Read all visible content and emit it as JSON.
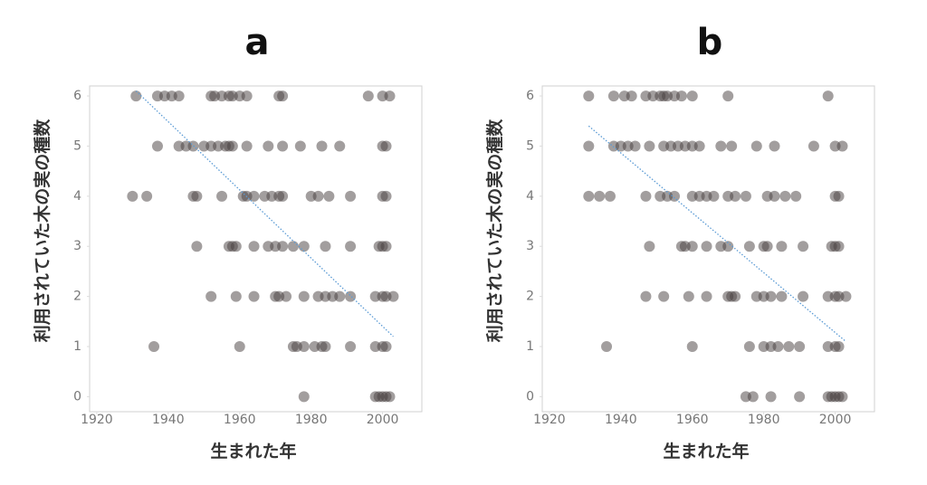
{
  "chart_data": [
    {
      "type": "scatter",
      "title": "a",
      "xlabel": "生まれた年",
      "ylabel": "利用されていた木の実の種数",
      "color": "rgba(70,62,62,0.5)",
      "trend_color": "#5b9bd5",
      "xlim": [
        1918,
        2011
      ],
      "ylim": [
        -0.3,
        6.2
      ],
      "xticks": [
        1920,
        1940,
        1960,
        1980,
        2000
      ],
      "yticks": [
        0,
        1,
        2,
        3,
        4,
        5,
        6
      ],
      "x": [
        1931,
        1937,
        1939,
        1941,
        1943,
        1952,
        1953,
        1955,
        1957,
        1958,
        1960,
        1962,
        1971,
        1972,
        1996,
        2000,
        2002,
        1937,
        1943,
        1945,
        1947,
        1950,
        1952,
        1954,
        1956,
        1957,
        1958,
        1962,
        1968,
        1972,
        1977,
        1983,
        1988,
        2000,
        2001,
        1930,
        1934,
        1947,
        1948,
        1955,
        1961,
        1962,
        1964,
        1967,
        1969,
        1971,
        1972,
        1980,
        1982,
        1985,
        1991,
        2000,
        2001,
        1948,
        1957,
        1958,
        1959,
        1964,
        1968,
        1970,
        1972,
        1975,
        1978,
        1984,
        1991,
        1999,
        2000,
        2001,
        1952,
        1959,
        1964,
        1970,
        1971,
        1973,
        1978,
        1982,
        1984,
        1986,
        1988,
        1991,
        1998,
        2000,
        2001,
        2003,
        1936,
        1960,
        1975,
        1976,
        1978,
        1981,
        1983,
        1984,
        1991,
        1998,
        2000,
        2001,
        1978,
        1998,
        1999,
        2000,
        2001,
        2002
      ],
      "y": [
        6,
        6,
        6,
        6,
        6,
        6,
        6,
        6,
        6,
        6,
        6,
        6,
        6,
        6,
        6,
        6,
        6,
        5,
        5,
        5,
        5,
        5,
        5,
        5,
        5,
        5,
        5,
        5,
        5,
        5,
        5,
        5,
        5,
        5,
        5,
        4,
        4,
        4,
        4,
        4,
        4,
        4,
        4,
        4,
        4,
        4,
        4,
        4,
        4,
        4,
        4,
        4,
        4,
        3,
        3,
        3,
        3,
        3,
        3,
        3,
        3,
        3,
        3,
        3,
        3,
        3,
        3,
        3,
        2,
        2,
        2,
        2,
        2,
        2,
        2,
        2,
        2,
        2,
        2,
        2,
        2,
        2,
        2,
        2,
        1,
        1,
        1,
        1,
        1,
        1,
        1,
        1,
        1,
        1,
        1,
        1,
        0,
        0,
        0,
        0,
        0,
        0
      ],
      "trendline": {
        "x": [
          1931,
          2003
        ],
        "y": [
          6.1,
          1.2
        ]
      }
    },
    {
      "type": "scatter",
      "title": "b",
      "xlabel": "生まれた年",
      "ylabel": "利用されていた木の実の種数",
      "color": "rgba(70,62,62,0.5)",
      "trend_color": "#5b9bd5",
      "xlim": [
        1918,
        2011
      ],
      "ylim": [
        -0.3,
        6.2
      ],
      "xticks": [
        1920,
        1940,
        1960,
        1980,
        2000
      ],
      "yticks": [
        0,
        1,
        2,
        3,
        4,
        5,
        6
      ],
      "x": [
        1931,
        1938,
        1941,
        1943,
        1947,
        1949,
        1951,
        1952,
        1953,
        1955,
        1957,
        1960,
        1970,
        1998,
        1931,
        1938,
        1940,
        1942,
        1944,
        1948,
        1952,
        1954,
        1956,
        1958,
        1960,
        1962,
        1968,
        1971,
        1978,
        1983,
        1994,
        2000,
        2002,
        1931,
        1934,
        1937,
        1947,
        1951,
        1953,
        1955,
        1960,
        1962,
        1964,
        1966,
        1970,
        1972,
        1975,
        1981,
        1983,
        1986,
        1989,
        2000,
        2001,
        1948,
        1957,
        1958,
        1960,
        1964,
        1968,
        1970,
        1976,
        1980,
        1981,
        1985,
        1991,
        1999,
        2000,
        2001,
        1947,
        1952,
        1959,
        1964,
        1970,
        1971,
        1972,
        1978,
        1980,
        1982,
        1985,
        1991,
        1998,
        2000,
        2001,
        2003,
        1936,
        1960,
        1976,
        1980,
        1982,
        1984,
        1987,
        1990,
        1998,
        2000,
        2001,
        1975,
        1977,
        1982,
        1990,
        1998,
        1999,
        2000,
        2001,
        2002
      ],
      "y": [
        6,
        6,
        6,
        6,
        6,
        6,
        6,
        6,
        6,
        6,
        6,
        6,
        6,
        6,
        5,
        5,
        5,
        5,
        5,
        5,
        5,
        5,
        5,
        5,
        5,
        5,
        5,
        5,
        5,
        5,
        5,
        5,
        5,
        4,
        4,
        4,
        4,
        4,
        4,
        4,
        4,
        4,
        4,
        4,
        4,
        4,
        4,
        4,
        4,
        4,
        4,
        4,
        4,
        3,
        3,
        3,
        3,
        3,
        3,
        3,
        3,
        3,
        3,
        3,
        3,
        3,
        3,
        3,
        2,
        2,
        2,
        2,
        2,
        2,
        2,
        2,
        2,
        2,
        2,
        2,
        2,
        2,
        2,
        2,
        1,
        1,
        1,
        1,
        1,
        1,
        1,
        1,
        1,
        1,
        1,
        0,
        0,
        0,
        0,
        0,
        0,
        0,
        0,
        0
      ],
      "trendline": {
        "x": [
          1931,
          2003
        ],
        "y": [
          5.4,
          1.1
        ]
      }
    }
  ]
}
